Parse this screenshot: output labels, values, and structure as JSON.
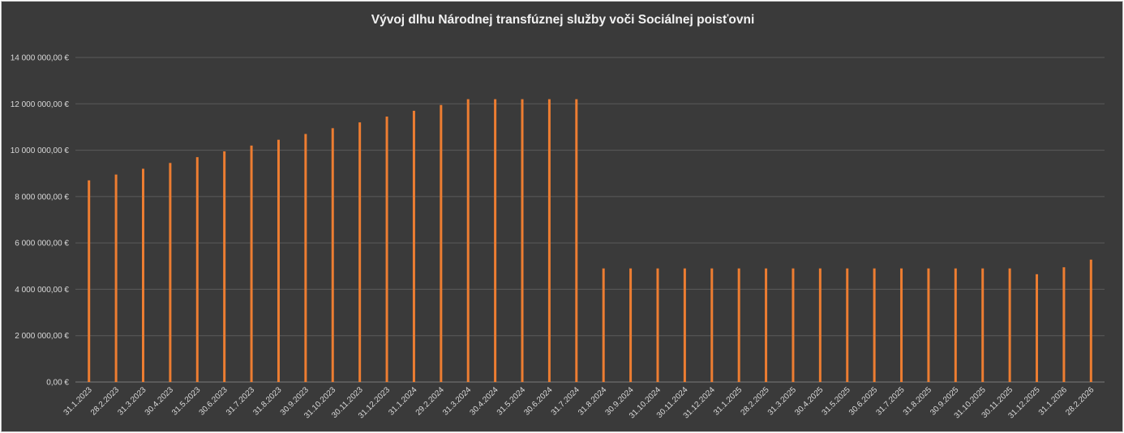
{
  "chart_data": {
    "type": "bar",
    "title": "Vývoj dlhu Národnej transfúznej služby voči Sociálnej poisťovni",
    "xlabel": "",
    "ylabel": "",
    "ylim": [
      0,
      14000000
    ],
    "y_ticks": [
      {
        "value": 0,
        "label": "0,00 €"
      },
      {
        "value": 2000000,
        "label": "2 000 000,00 €"
      },
      {
        "value": 4000000,
        "label": "4 000 000,00 €"
      },
      {
        "value": 6000000,
        "label": "6 000 000,00 €"
      },
      {
        "value": 8000000,
        "label": "8 000 000,00 €"
      },
      {
        "value": 10000000,
        "label": "10 000 000,00 €"
      },
      {
        "value": 12000000,
        "label": "12 000 000,00 €"
      },
      {
        "value": 14000000,
        "label": "14 000 000,00 €"
      }
    ],
    "grid": true,
    "legend": "none",
    "bar_color": "#ed7d31",
    "categories": [
      "31.1.2023",
      "28.2.2023",
      "31.3.2023",
      "30.4.2023",
      "31.5.2023",
      "30.6.2023",
      "31.7.2023",
      "31.8.2023",
      "30.9.2023",
      "31.10.2023",
      "30.11.2023",
      "31.12.2023",
      "31.1.2024",
      "29.2.2024",
      "31.3.2024",
      "30.4.2024",
      "31.5.2024",
      "30.6.2024",
      "31.7.2024",
      "31.8.2024",
      "30.9.2024",
      "31.10.2024",
      "30.11.2024",
      "31.12.2024",
      "31.1.2025",
      "28.2.2025",
      "31.3.2025",
      "30.4.2025",
      "31.5.2025",
      "30.6.2025",
      "31.7.2025",
      "31.8.2025",
      "30.9.2025",
      "31.10.2025",
      "30.11.2025",
      "31.12.2025",
      "31.1.2026",
      "28.2.2026"
    ],
    "values": [
      8700000,
      8950000,
      9200000,
      9450000,
      9700000,
      9950000,
      10200000,
      10450000,
      10700000,
      10950000,
      11200000,
      11450000,
      11700000,
      11950000,
      12200000,
      12200000,
      12200000,
      12200000,
      12200000,
      4900000,
      4900000,
      4900000,
      4900000,
      4900000,
      4900000,
      4900000,
      4900000,
      4900000,
      4900000,
      4900000,
      4900000,
      4900000,
      4900000,
      4900000,
      4900000,
      4650000,
      4950000,
      5280000
    ]
  }
}
